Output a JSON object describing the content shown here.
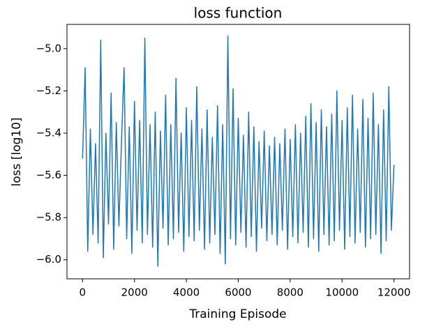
{
  "chart_data": {
    "type": "line",
    "title": "loss function",
    "x_label": "Training Episode",
    "y_label": "loss [log10]",
    "color": "#1f77b4",
    "x": [
      0,
      100,
      200,
      300,
      400,
      500,
      600,
      700,
      800,
      900,
      1000,
      1100,
      1200,
      1300,
      1400,
      1500,
      1600,
      1700,
      1800,
      1900,
      2000,
      2100,
      2200,
      2300,
      2400,
      2500,
      2600,
      2700,
      2800,
      2900,
      3000,
      3100,
      3200,
      3300,
      3400,
      3500,
      3600,
      3700,
      3800,
      3900,
      4000,
      4100,
      4200,
      4300,
      4400,
      4500,
      4600,
      4700,
      4800,
      4900,
      5000,
      5100,
      5200,
      5300,
      5400,
      5500,
      5600,
      5700,
      5800,
      5900,
      6000,
      6100,
      6200,
      6300,
      6400,
      6500,
      6600,
      6700,
      6800,
      6900,
      7000,
      7100,
      7200,
      7300,
      7400,
      7500,
      7600,
      7700,
      7800,
      7900,
      8000,
      8100,
      8200,
      8300,
      8400,
      8500,
      8600,
      8700,
      8800,
      8900,
      9000,
      9100,
      9200,
      9300,
      9400,
      9500,
      9600,
      9700,
      9800,
      9900,
      10000,
      10100,
      10200,
      10300,
      10400,
      10500,
      10600,
      10700,
      10800,
      10900,
      11000,
      11100,
      11200,
      11300,
      11400,
      11500,
      11600,
      11700,
      11800,
      11900,
      12000
    ],
    "values": [
      -5.52,
      -5.09,
      -5.96,
      -5.38,
      -5.88,
      -5.45,
      -5.92,
      -4.96,
      -5.99,
      -5.4,
      -5.83,
      -5.21,
      -5.95,
      -5.35,
      -5.84,
      -5.44,
      -5.09,
      -5.9,
      -5.37,
      -5.97,
      -5.25,
      -5.86,
      -5.34,
      -5.92,
      -4.95,
      -5.88,
      -5.36,
      -5.94,
      -5.3,
      -6.03,
      -5.39,
      -5.85,
      -5.22,
      -5.93,
      -5.36,
      -5.9,
      -5.14,
      -5.87,
      -5.4,
      -5.96,
      -5.28,
      -5.89,
      -5.34,
      -5.91,
      -5.18,
      -5.86,
      -5.38,
      -5.95,
      -5.29,
      -5.92,
      -5.42,
      -5.88,
      -5.27,
      -5.97,
      -5.36,
      -6.02,
      -4.94,
      -5.9,
      -5.19,
      -5.93,
      -5.33,
      -5.87,
      -5.41,
      -5.94,
      -5.3,
      -5.89,
      -5.37,
      -5.96,
      -5.44,
      -5.85,
      -5.39,
      -5.91,
      -5.46,
      -5.88,
      -5.42,
      -5.93,
      -5.45,
      -5.86,
      -5.38,
      -5.95,
      -5.43,
      -5.89,
      -5.36,
      -5.92,
      -5.4,
      -5.87,
      -5.32,
      -5.94,
      -5.26,
      -5.9,
      -5.35,
      -5.96,
      -5.29,
      -5.88,
      -5.37,
      -5.93,
      -5.31,
      -5.91,
      -5.2,
      -5.86,
      -5.34,
      -5.95,
      -5.28,
      -5.89,
      -5.22,
      -5.92,
      -5.38,
      -5.87,
      -5.24,
      -5.94,
      -5.33,
      -5.9,
      -5.21,
      -5.88,
      -5.36,
      -5.97,
      -5.29,
      -5.91,
      -5.18,
      -5.86,
      -5.55
    ],
    "xlim": [
      -600,
      12600
    ],
    "ylim": [
      -6.09,
      -4.885
    ],
    "xticks": [
      0,
      2000,
      4000,
      6000,
      8000,
      10000,
      12000
    ],
    "yticks": [
      {
        "value": -6.0,
        "label": "−6.0"
      },
      {
        "value": -5.8,
        "label": "−5.8"
      },
      {
        "value": -5.6,
        "label": "−5.6"
      },
      {
        "value": -5.4,
        "label": "−5.4"
      },
      {
        "value": -5.2,
        "label": "−5.2"
      },
      {
        "value": -5.0,
        "label": "−5.0"
      }
    ]
  }
}
